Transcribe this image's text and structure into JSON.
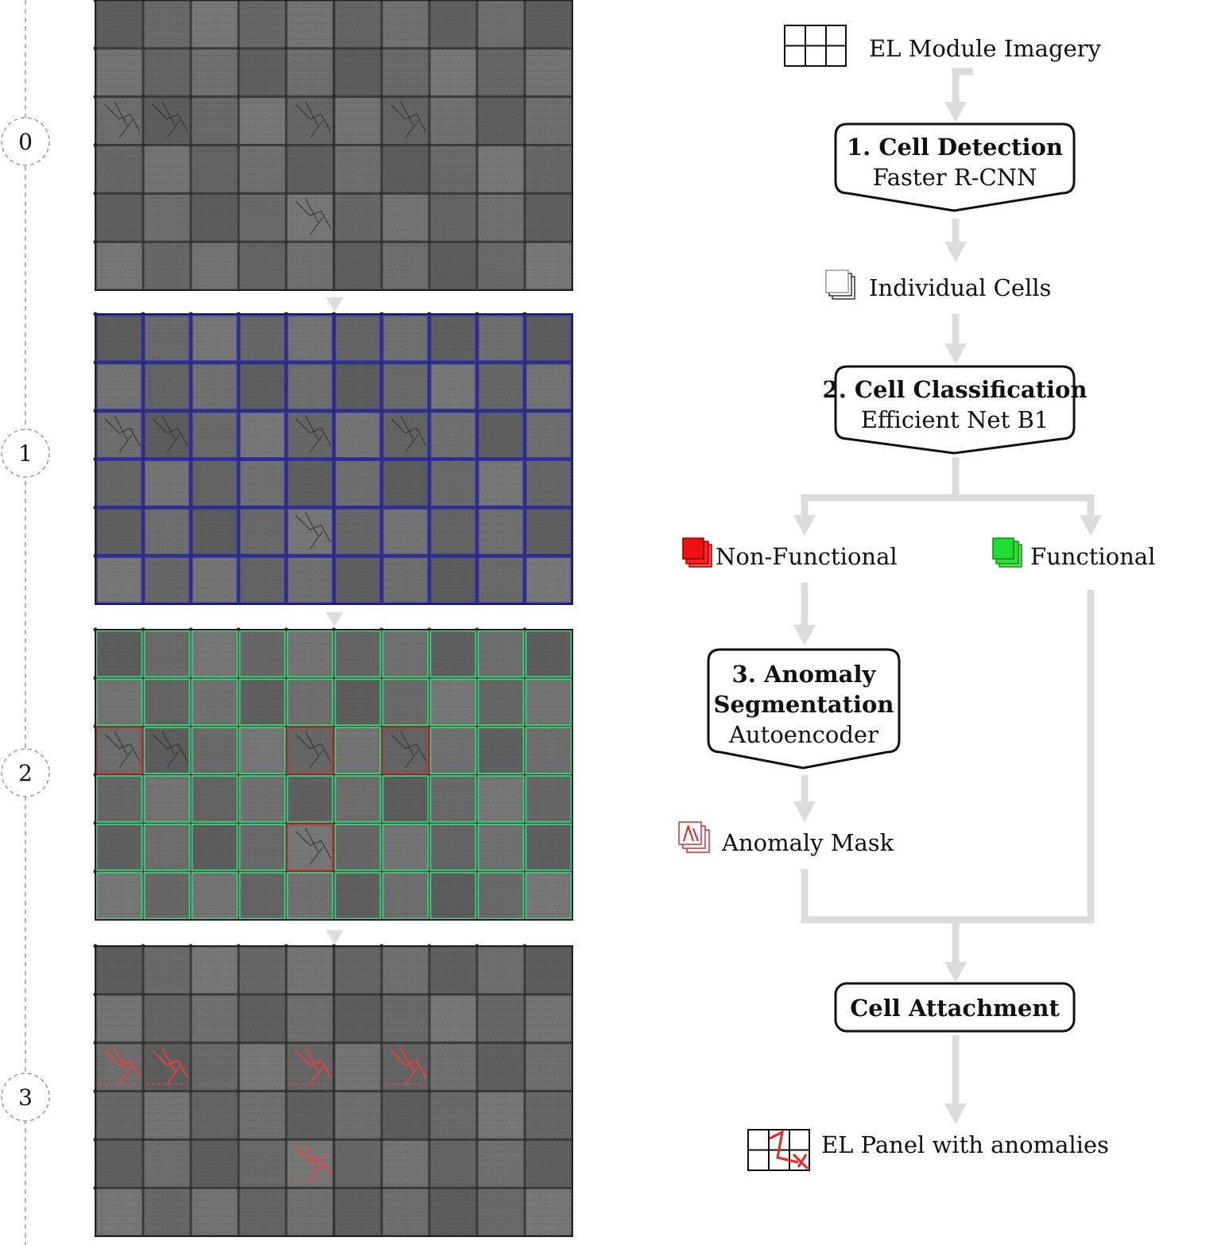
{
  "steps": [
    "0",
    "1",
    "2",
    "3"
  ],
  "flow": {
    "input": "EL Module Imagery",
    "detection": {
      "title": "1. Cell Detection",
      "method": "Faster R-CNN"
    },
    "cells": "Individual Cells",
    "classification": {
      "title": "2. Cell Classification",
      "method": "Efficient Net B1"
    },
    "non_functional": "Non-Functional",
    "functional": "Functional",
    "segmentation": {
      "title_line1": "3. Anomaly",
      "title_line2": "Segmentation",
      "method": "Autoencoder"
    },
    "mask": "Anomaly Mask",
    "attachment": "Cell Attachment",
    "output": "EL Panel with anomalies"
  },
  "panel_grid": {
    "cols": 10,
    "rows": 6
  },
  "colors": {
    "detection_box": "#2a2ab8",
    "functional_box": "#3ed47a",
    "non_functional_box": "#d42a2a",
    "anomaly": "#ff3b3b",
    "arrow": "#dcdcdc",
    "func_icon": "#22dd33",
    "nonfunc_icon": "#ee1111"
  },
  "non_functional_cells": [
    [
      2,
      0
    ],
    [
      2,
      4
    ],
    [
      2,
      6
    ],
    [
      4,
      4
    ]
  ]
}
